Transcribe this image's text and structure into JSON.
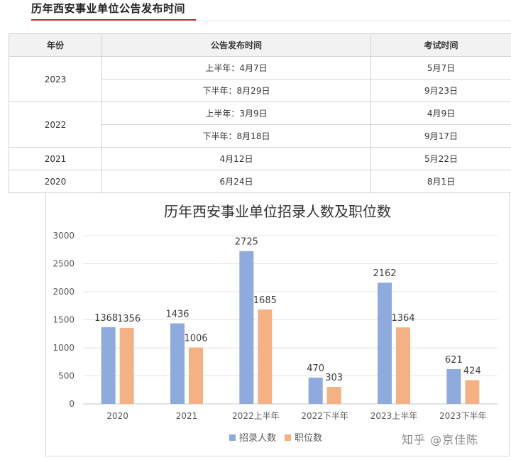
{
  "section": {
    "title": "历年西安事业单位公告发布时间"
  },
  "schedule_table": {
    "headers": [
      "年份",
      "公告发布时间",
      "考试时间"
    ],
    "groups": [
      {
        "year": "2023",
        "rows": [
          {
            "announce": "上半年：4月7日",
            "exam": "5月7日"
          },
          {
            "announce": "下半年：8月29日",
            "exam": "9月23日"
          }
        ]
      },
      {
        "year": "2022",
        "rows": [
          {
            "announce": "上半年：3月9日",
            "exam": "4月9日"
          },
          {
            "announce": "下半年：8月18日",
            "exam": "9月17日"
          }
        ]
      },
      {
        "year": "2021",
        "rows": [
          {
            "announce": "4月12日",
            "exam": "5月22日"
          }
        ]
      },
      {
        "year": "2020",
        "rows": [
          {
            "announce": "6月24日",
            "exam": "8月1日"
          }
        ]
      }
    ]
  },
  "chart_data": {
    "type": "bar",
    "title": "历年西安事业单位招录人数及职位数",
    "categories": [
      "2020",
      "2021",
      "2022上半年",
      "2022下半年",
      "2023上半年",
      "2023下半年"
    ],
    "series": [
      {
        "name": "招录人数",
        "values": [
          1368,
          1436,
          2725,
          470,
          2162,
          621
        ],
        "color": "#8faadc"
      },
      {
        "name": "职位数",
        "values": [
          1356,
          1006,
          1685,
          303,
          1364,
          424
        ],
        "color": "#f4b183"
      }
    ],
    "yticks": [
      0,
      500,
      1000,
      1500,
      2000,
      2500,
      3000
    ],
    "ylim": [
      0,
      3000
    ],
    "grid": true,
    "legend_position": "bottom"
  },
  "watermark": {
    "text": "知乎 @京佳陈"
  }
}
